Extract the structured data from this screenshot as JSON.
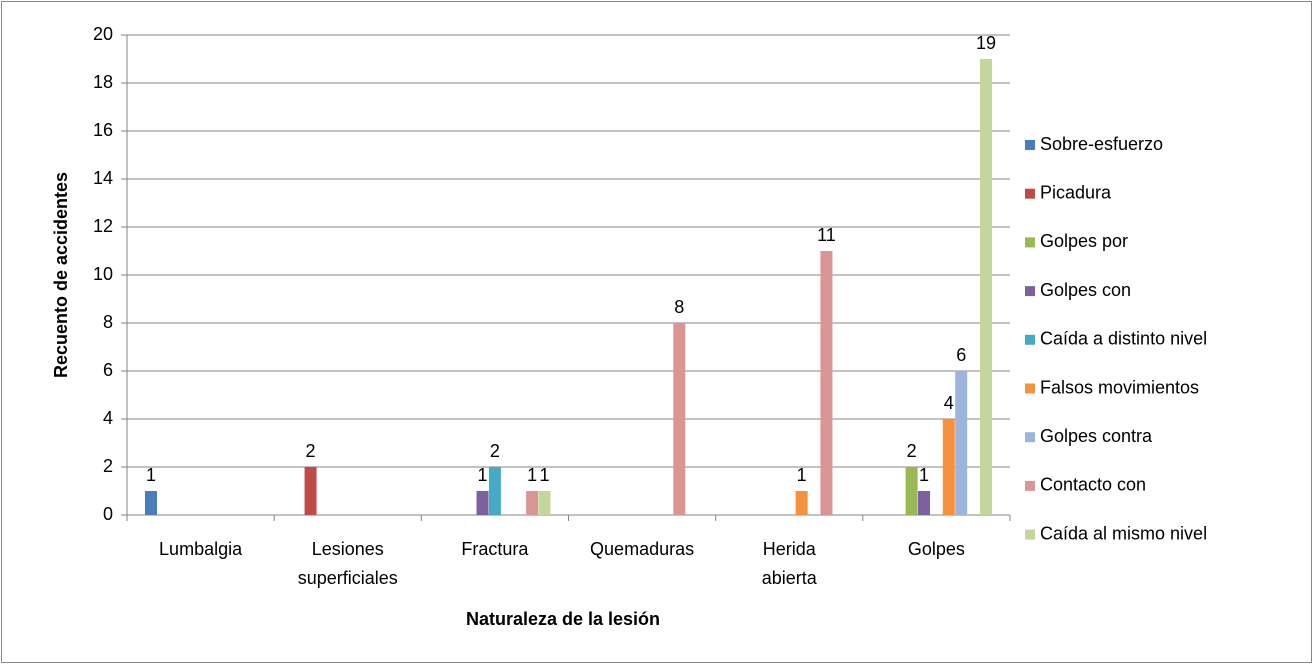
{
  "chart_data": {
    "type": "bar",
    "xlabel": "Naturaleza de la lesión",
    "ylabel": "Recuento de accidentes",
    "categories": [
      "Lumbalgia",
      "Lesiones superficiales",
      "Fractura",
      "Quemaduras",
      "Herida abierta",
      "Golpes"
    ],
    "series": [
      {
        "name": "Sobre-esfuerzo",
        "color": "#4a7ebb",
        "values": [
          1,
          null,
          null,
          null,
          null,
          null
        ]
      },
      {
        "name": "Picadura",
        "color": "#be4b48",
        "values": [
          null,
          2,
          null,
          null,
          null,
          null
        ]
      },
      {
        "name": "Golpes por",
        "color": "#98b954",
        "values": [
          null,
          null,
          null,
          null,
          null,
          2
        ]
      },
      {
        "name": "Golpes con",
        "color": "#7d60a0",
        "values": [
          null,
          null,
          1,
          null,
          null,
          1
        ]
      },
      {
        "name": "Caída a distinto nivel",
        "color": "#46aac5",
        "values": [
          null,
          null,
          2,
          null,
          null,
          null
        ]
      },
      {
        "name": "Falsos movimientos",
        "color": "#f59240",
        "values": [
          null,
          null,
          null,
          null,
          1,
          4
        ]
      },
      {
        "name": "Golpes contra",
        "color": "#9db5dc",
        "values": [
          null,
          null,
          null,
          null,
          null,
          6
        ]
      },
      {
        "name": "Contacto con",
        "color": "#d99694",
        "values": [
          null,
          null,
          1,
          8,
          11,
          null
        ]
      },
      {
        "name": "Caída al mismo nivel",
        "color": "#c3d69b",
        "values": [
          null,
          null,
          1,
          null,
          null,
          19
        ]
      }
    ],
    "ylim": [
      0,
      20
    ],
    "yticks": [
      0,
      2,
      4,
      6,
      8,
      10,
      12,
      14,
      16,
      18,
      20
    ],
    "grid": true,
    "legend": "right"
  }
}
